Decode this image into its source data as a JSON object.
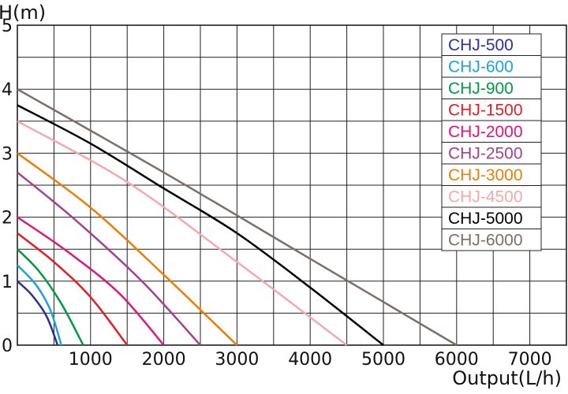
{
  "chart_data": {
    "type": "line",
    "title": "",
    "xlabel": "Output(L/h)",
    "ylabel": "H(m)",
    "xlim": [
      0,
      7500
    ],
    "ylim": [
      0,
      5
    ],
    "x_ticks": [
      1000,
      2000,
      3000,
      4000,
      5000,
      6000,
      7000
    ],
    "y_ticks": [
      0,
      1,
      2,
      3,
      4,
      5
    ],
    "x_tick_labels": [
      "1000",
      "2000",
      "3000",
      "4000",
      "5000",
      "6000",
      "7000"
    ],
    "y_tick_labels": [
      "0",
      "1",
      "2",
      "3",
      "4",
      "5"
    ],
    "grid": true,
    "legend_position": "top-right",
    "series": [
      {
        "name": "CHJ-500",
        "color": "#2e3192",
        "points": [
          [
            0,
            1.0
          ],
          [
            200,
            0.78
          ],
          [
            400,
            0.45
          ],
          [
            550,
            0
          ]
        ]
      },
      {
        "name": "CHJ-600",
        "color": "#1ba3e0",
        "points": [
          [
            0,
            1.25
          ],
          [
            250,
            0.95
          ],
          [
            450,
            0.55
          ],
          [
            600,
            0
          ]
        ]
      },
      {
        "name": "CHJ-900",
        "color": "#009a44",
        "points": [
          [
            0,
            1.5
          ],
          [
            300,
            1.15
          ],
          [
            600,
            0.65
          ],
          [
            900,
            0
          ]
        ]
      },
      {
        "name": "CHJ-1500",
        "color": "#e31e24",
        "points": [
          [
            0,
            1.75
          ],
          [
            500,
            1.3
          ],
          [
            1000,
            0.75
          ],
          [
            1500,
            0
          ]
        ]
      },
      {
        "name": "CHJ-2000",
        "color": "#e0147c",
        "points": [
          [
            0,
            2.0
          ],
          [
            700,
            1.45
          ],
          [
            1400,
            0.8
          ],
          [
            2000,
            0
          ]
        ]
      },
      {
        "name": "CHJ-2500",
        "color": "#a5408c",
        "points": [
          [
            0,
            2.7
          ],
          [
            800,
            1.95
          ],
          [
            1700,
            1.0
          ],
          [
            2500,
            0
          ]
        ]
      },
      {
        "name": "CHJ-3000",
        "color": "#ee7d00",
        "points": [
          [
            0,
            3.0
          ],
          [
            1000,
            2.15
          ],
          [
            2000,
            1.1
          ],
          [
            3000,
            0
          ]
        ]
      },
      {
        "name": "CHJ-4500",
        "color": "#f5a9ab",
        "points": [
          [
            0,
            3.5
          ],
          [
            1500,
            2.55
          ],
          [
            3000,
            1.3
          ],
          [
            4500,
            0
          ]
        ]
      },
      {
        "name": "CHJ-5000",
        "color": "#000000",
        "points": [
          [
            0,
            3.75
          ],
          [
            1000,
            3.15
          ],
          [
            2000,
            2.45
          ],
          [
            3000,
            1.75
          ],
          [
            4000,
            0.9
          ],
          [
            5000,
            0
          ]
        ]
      },
      {
        "name": "CHJ-6000",
        "color": "#7d6e69",
        "points": [
          [
            0,
            4.0
          ],
          [
            2000,
            2.7
          ],
          [
            4000,
            1.35
          ],
          [
            6000,
            0
          ]
        ]
      }
    ]
  }
}
